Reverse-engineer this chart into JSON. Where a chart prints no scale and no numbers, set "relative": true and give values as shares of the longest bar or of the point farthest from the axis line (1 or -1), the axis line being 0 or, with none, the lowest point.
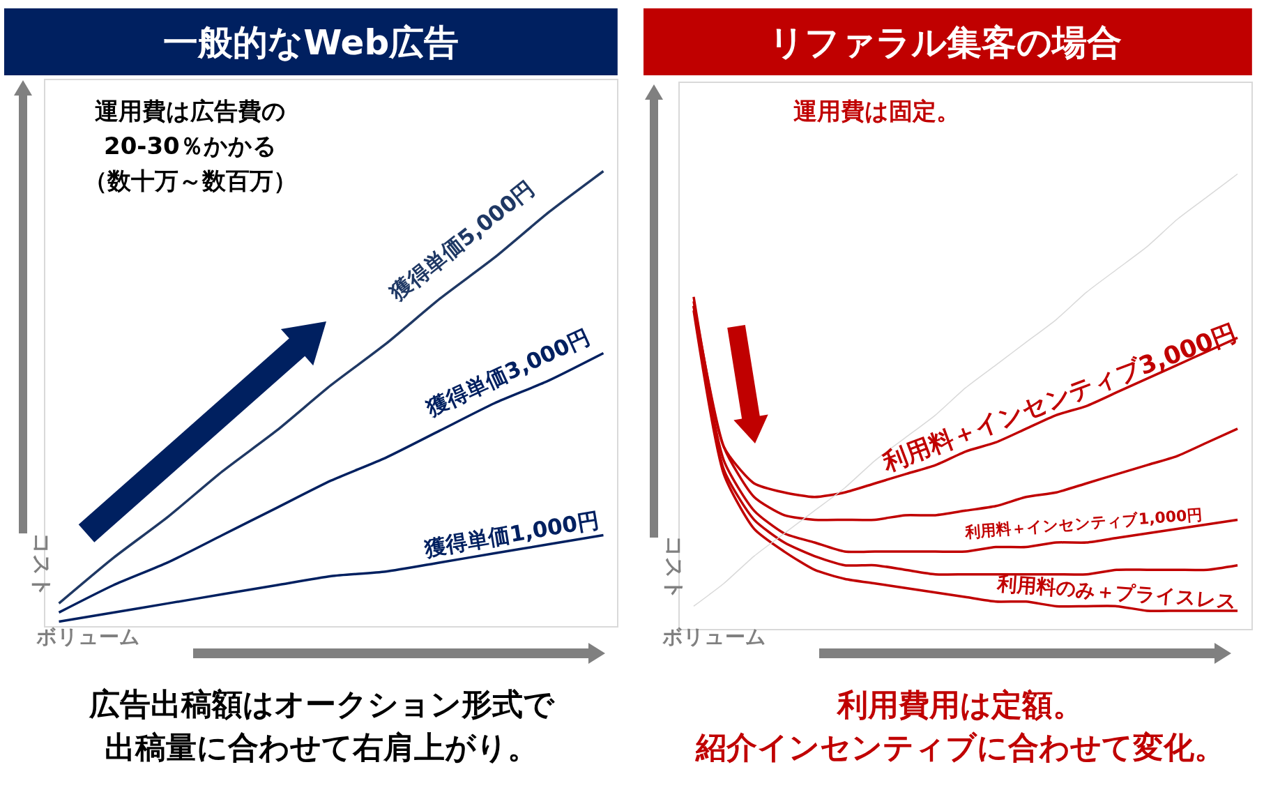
{
  "chart_data": [
    {
      "type": "line",
      "title": "一般的なWeb広告",
      "xlabel": "ボリューム",
      "ylabel": "コスト",
      "relative": true,
      "categories": [
        null,
        null,
        null,
        null,
        null,
        null,
        null,
        null,
        null,
        null,
        null
      ],
      "series": [
        {
          "name": "獲得単価5,000円",
          "color": "#1f3864",
          "values": [
            0.05,
            0.15,
            0.24,
            0.34,
            0.43,
            0.53,
            0.62,
            0.72,
            0.81,
            0.91,
            1.0
          ]
        },
        {
          "name": "獲得単価3,000円",
          "color": "#002060",
          "values": [
            0.03,
            0.09,
            0.14,
            0.2,
            0.26,
            0.32,
            0.37,
            0.43,
            0.49,
            0.54,
            0.6
          ]
        },
        {
          "name": "獲得単価1,000円",
          "color": "#002060",
          "values": [
            0.01,
            0.03,
            0.05,
            0.07,
            0.09,
            0.11,
            0.12,
            0.14,
            0.16,
            0.18,
            0.2
          ]
        }
      ],
      "annotations": [
        "運用費は広告費の",
        "20-30％かかる",
        "（数十万～数百万）",
        "広告出稿額はオークション形式で",
        "出稿量に合わせて右肩上がり。"
      ]
    },
    {
      "type": "line",
      "title": "リファラル集客の場合",
      "xlabel": "ボリューム",
      "ylabel": "コスト",
      "relative": true,
      "categories": [
        null,
        null,
        null,
        null,
        null,
        null,
        null,
        null,
        null,
        null,
        null,
        null,
        null,
        null,
        null,
        null,
        null,
        null,
        null
      ],
      "series": [
        {
          "name": "利用料＋インセンティブ3,000円",
          "color": "#c00000",
          "values": [
            0.73,
            0.4,
            0.32,
            0.3,
            0.29,
            0.3,
            0.32,
            0.34,
            0.36,
            0.39,
            0.41,
            0.44,
            0.47,
            0.49,
            0.52,
            0.55,
            0.58,
            0.61,
            0.64
          ]
        },
        {
          "color": "#c00000",
          "values": [
            0.72,
            0.4,
            0.29,
            0.25,
            0.24,
            0.24,
            0.24,
            0.25,
            0.25,
            0.26,
            0.27,
            0.29,
            0.3,
            0.32,
            0.34,
            0.36,
            0.38,
            0.41,
            0.44
          ]
        },
        {
          "name": "利用料＋インセンティブ1,000円",
          "color": "#c00000",
          "values": [
            0.71,
            0.37,
            0.26,
            0.21,
            0.19,
            0.17,
            0.17,
            0.17,
            0.17,
            0.17,
            0.18,
            0.18,
            0.19,
            0.19,
            0.2,
            0.21,
            0.22,
            0.23,
            0.24
          ]
        },
        {
          "color": "#c00000",
          "values": [
            0.71,
            0.35,
            0.24,
            0.19,
            0.16,
            0.14,
            0.14,
            0.13,
            0.12,
            0.12,
            0.12,
            0.12,
            0.12,
            0.12,
            0.13,
            0.13,
            0.13,
            0.13,
            0.14
          ]
        },
        {
          "name": "利用料のみ＋プライスレス",
          "color": "#c00000",
          "values": [
            0.7,
            0.34,
            0.22,
            0.17,
            0.13,
            0.11,
            0.1,
            0.09,
            0.08,
            0.07,
            0.06,
            0.06,
            0.05,
            0.05,
            0.05,
            0.04,
            0.04,
            0.04,
            0.04
          ]
        },
        {
          "color": "#d9d9d9",
          "values": [
            0.05,
            0.1,
            0.16,
            0.21,
            0.26,
            0.31,
            0.37,
            0.42,
            0.47,
            0.53,
            0.58,
            0.63,
            0.68,
            0.74,
            0.79,
            0.84,
            0.9,
            0.95,
            1.0
          ]
        }
      ],
      "annotations": [
        "運用費は固定。",
        "利用費用は定額。",
        "紹介インセンティブに合わせて変化。"
      ]
    }
  ]
}
